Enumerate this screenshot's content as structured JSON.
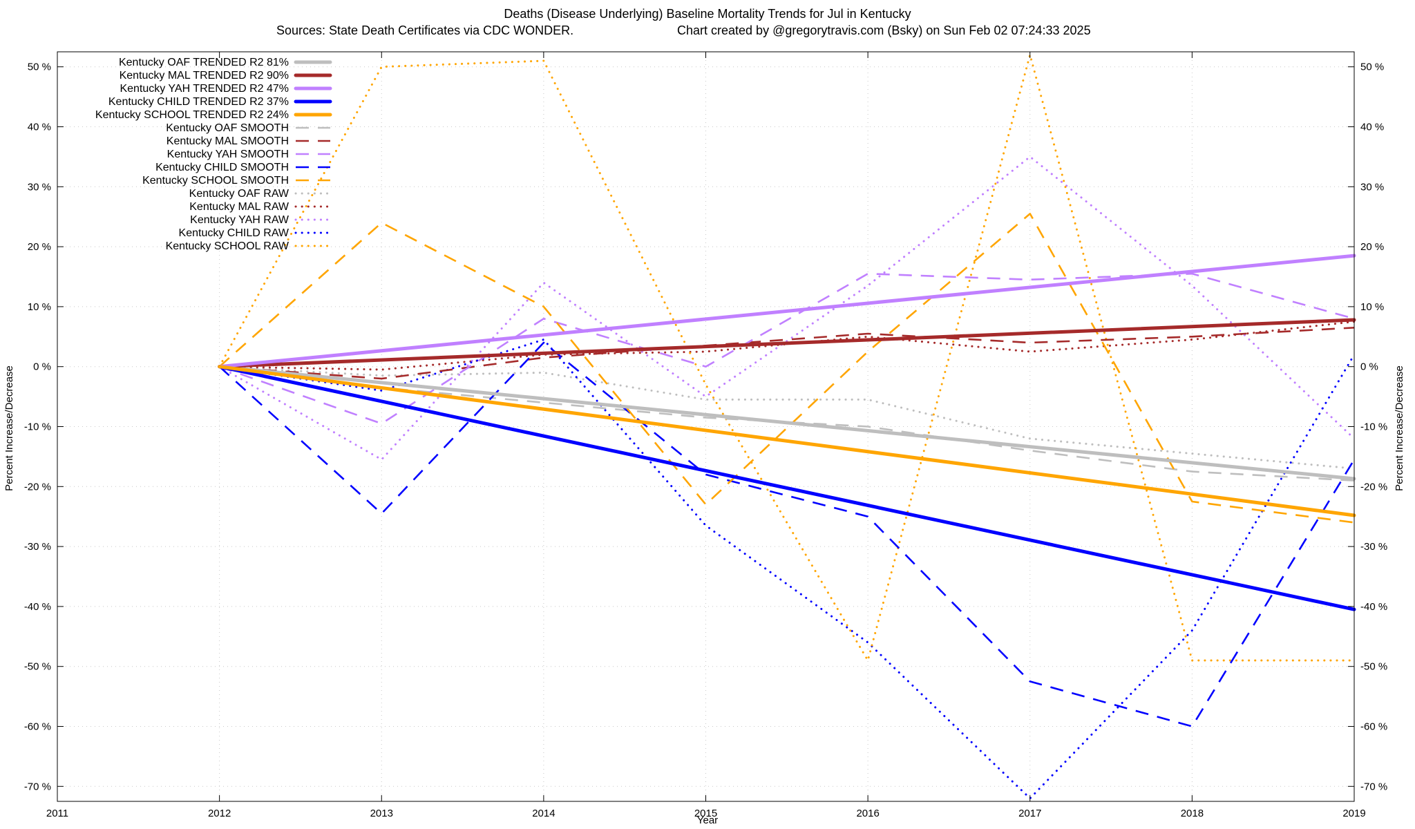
{
  "chart_data": {
    "type": "line",
    "title": "Deaths (Disease Underlying)  Baseline Mortality Trends for Jul in Kentucky",
    "subtitle_left": "Sources: State Death Certificates via CDC WONDER.",
    "subtitle_right": "Chart created by @gregorytravis.com (Bsky) on Sun Feb 02 07:24:33 2025",
    "xlabel": "Year",
    "ylabel_left": "Percent Increase/Decrease",
    "ylabel_right": "Percent Increase/Decrease",
    "xlim": [
      2011,
      2019
    ],
    "ylim": [
      -72.5,
      52.5
    ],
    "x_ticks": [
      "2011",
      "2012",
      "2013",
      "2014",
      "2015",
      "2016",
      "2017",
      "2018",
      "2019"
    ],
    "x_tick_values": [
      2011,
      2012,
      2013,
      2014,
      2015,
      2016,
      2017,
      2018,
      2019
    ],
    "y_ticks": [
      "50 %",
      "40 %",
      "30 %",
      "20 %",
      "10 %",
      "0 %",
      "-10 %",
      "-20 %",
      "-30 %",
      "-40 %",
      "-50 %",
      "-60 %",
      "-70 %"
    ],
    "y_tick_values": [
      50,
      40,
      30,
      20,
      10,
      0,
      -10,
      -20,
      -30,
      -40,
      -50,
      -60,
      -70
    ],
    "grid": true,
    "legend_position": "top-left",
    "series": [
      {
        "name": "Kentucky OAF TRENDED R2  81%",
        "style": "trended",
        "color": "#bebebe",
        "x": [
          2012,
          2019
        ],
        "y": [
          0,
          -18.7
        ]
      },
      {
        "name": "Kentucky MAL TRENDED R2  90%",
        "style": "trended",
        "color": "#a52a2a",
        "x": [
          2012,
          2019
        ],
        "y": [
          0,
          7.8
        ]
      },
      {
        "name": "Kentucky YAH TRENDED R2  47%",
        "style": "trended",
        "color": "#c080ff",
        "x": [
          2012,
          2019
        ],
        "y": [
          0,
          18.5
        ]
      },
      {
        "name": "Kentucky CHILD TRENDED R2  37%",
        "style": "trended",
        "color": "#0000ff",
        "x": [
          2012,
          2019
        ],
        "y": [
          0,
          -40.5
        ]
      },
      {
        "name": "Kentucky SCHOOL TRENDED R2  24%",
        "style": "trended",
        "color": "#ffa500",
        "x": [
          2012,
          2019
        ],
        "y": [
          0,
          -24.8
        ]
      },
      {
        "name": "Kentucky OAF SMOOTH",
        "style": "smooth",
        "color": "#bebebe",
        "x": [
          2012,
          2013,
          2014,
          2015,
          2016,
          2017,
          2018,
          2019
        ],
        "y": [
          0,
          -3.5,
          -6.0,
          -8.5,
          -10.0,
          -14.0,
          -17.5,
          -19.0
        ]
      },
      {
        "name": "Kentucky MAL SMOOTH",
        "style": "smooth",
        "color": "#a52a2a",
        "x": [
          2012,
          2013,
          2014,
          2015,
          2016,
          2017,
          2018,
          2019
        ],
        "y": [
          0,
          -2.0,
          1.5,
          3.5,
          5.5,
          4.0,
          5.0,
          6.5
        ]
      },
      {
        "name": "Kentucky YAH SMOOTH",
        "style": "smooth",
        "color": "#c080ff",
        "x": [
          2012,
          2013,
          2014,
          2015,
          2016,
          2017,
          2018,
          2019
        ],
        "y": [
          0,
          -9.5,
          8.0,
          0,
          15.5,
          14.5,
          15.5,
          8.0
        ]
      },
      {
        "name": "Kentucky CHILD SMOOTH",
        "style": "smooth",
        "color": "#0000ff",
        "x": [
          2012,
          2013,
          2014,
          2015,
          2016,
          2017,
          2018,
          2019
        ],
        "y": [
          0,
          -24.5,
          4.0,
          -18.0,
          -25.0,
          -52.5,
          -60.0,
          -15.5
        ]
      },
      {
        "name": "Kentucky SCHOOL SMOOTH",
        "style": "smooth",
        "color": "#ffa500",
        "x": [
          2012,
          2013,
          2014,
          2015,
          2016,
          2017,
          2018,
          2019
        ],
        "y": [
          0,
          24.0,
          10.0,
          -23.0,
          2.5,
          25.5,
          -22.5,
          -26.0
        ]
      },
      {
        "name": "Kentucky OAF RAW",
        "style": "raw",
        "color": "#bebebe",
        "x": [
          2012,
          2013,
          2014,
          2015,
          2016,
          2017,
          2018,
          2019
        ],
        "y": [
          0,
          -1.5,
          -1.0,
          -5.5,
          -5.5,
          -12.0,
          -14.5,
          -17.0
        ]
      },
      {
        "name": "Kentucky MAL RAW",
        "style": "raw",
        "color": "#a52a2a",
        "x": [
          2012,
          2013,
          2014,
          2015,
          2016,
          2017,
          2018,
          2019
        ],
        "y": [
          0,
          -0.5,
          2.0,
          2.5,
          5.0,
          2.5,
          4.5,
          7.5
        ]
      },
      {
        "name": "Kentucky YAH RAW",
        "style": "raw",
        "color": "#c080ff",
        "x": [
          2012,
          2013,
          2014,
          2015,
          2016,
          2017,
          2018,
          2019
        ],
        "y": [
          0,
          -15.5,
          14.0,
          -5.0,
          13.5,
          35.0,
          13.5,
          -12.0
        ]
      },
      {
        "name": "Kentucky CHILD RAW",
        "style": "raw",
        "color": "#0000ff",
        "x": [
          2012,
          2013,
          2014,
          2015,
          2016,
          2017,
          2018,
          2019
        ],
        "y": [
          0,
          -4.0,
          4.5,
          -26.5,
          -46.0,
          -72.0,
          -44.0,
          2.0
        ]
      },
      {
        "name": "Kentucky SCHOOL RAW",
        "style": "raw",
        "color": "#ffa500",
        "x": [
          2012,
          2013,
          2014,
          2015,
          2016,
          2017,
          2018,
          2019
        ],
        "y": [
          0,
          50.0,
          51.0,
          -3.0,
          -49.0,
          52.0,
          -49.0,
          -49.0
        ]
      }
    ]
  }
}
